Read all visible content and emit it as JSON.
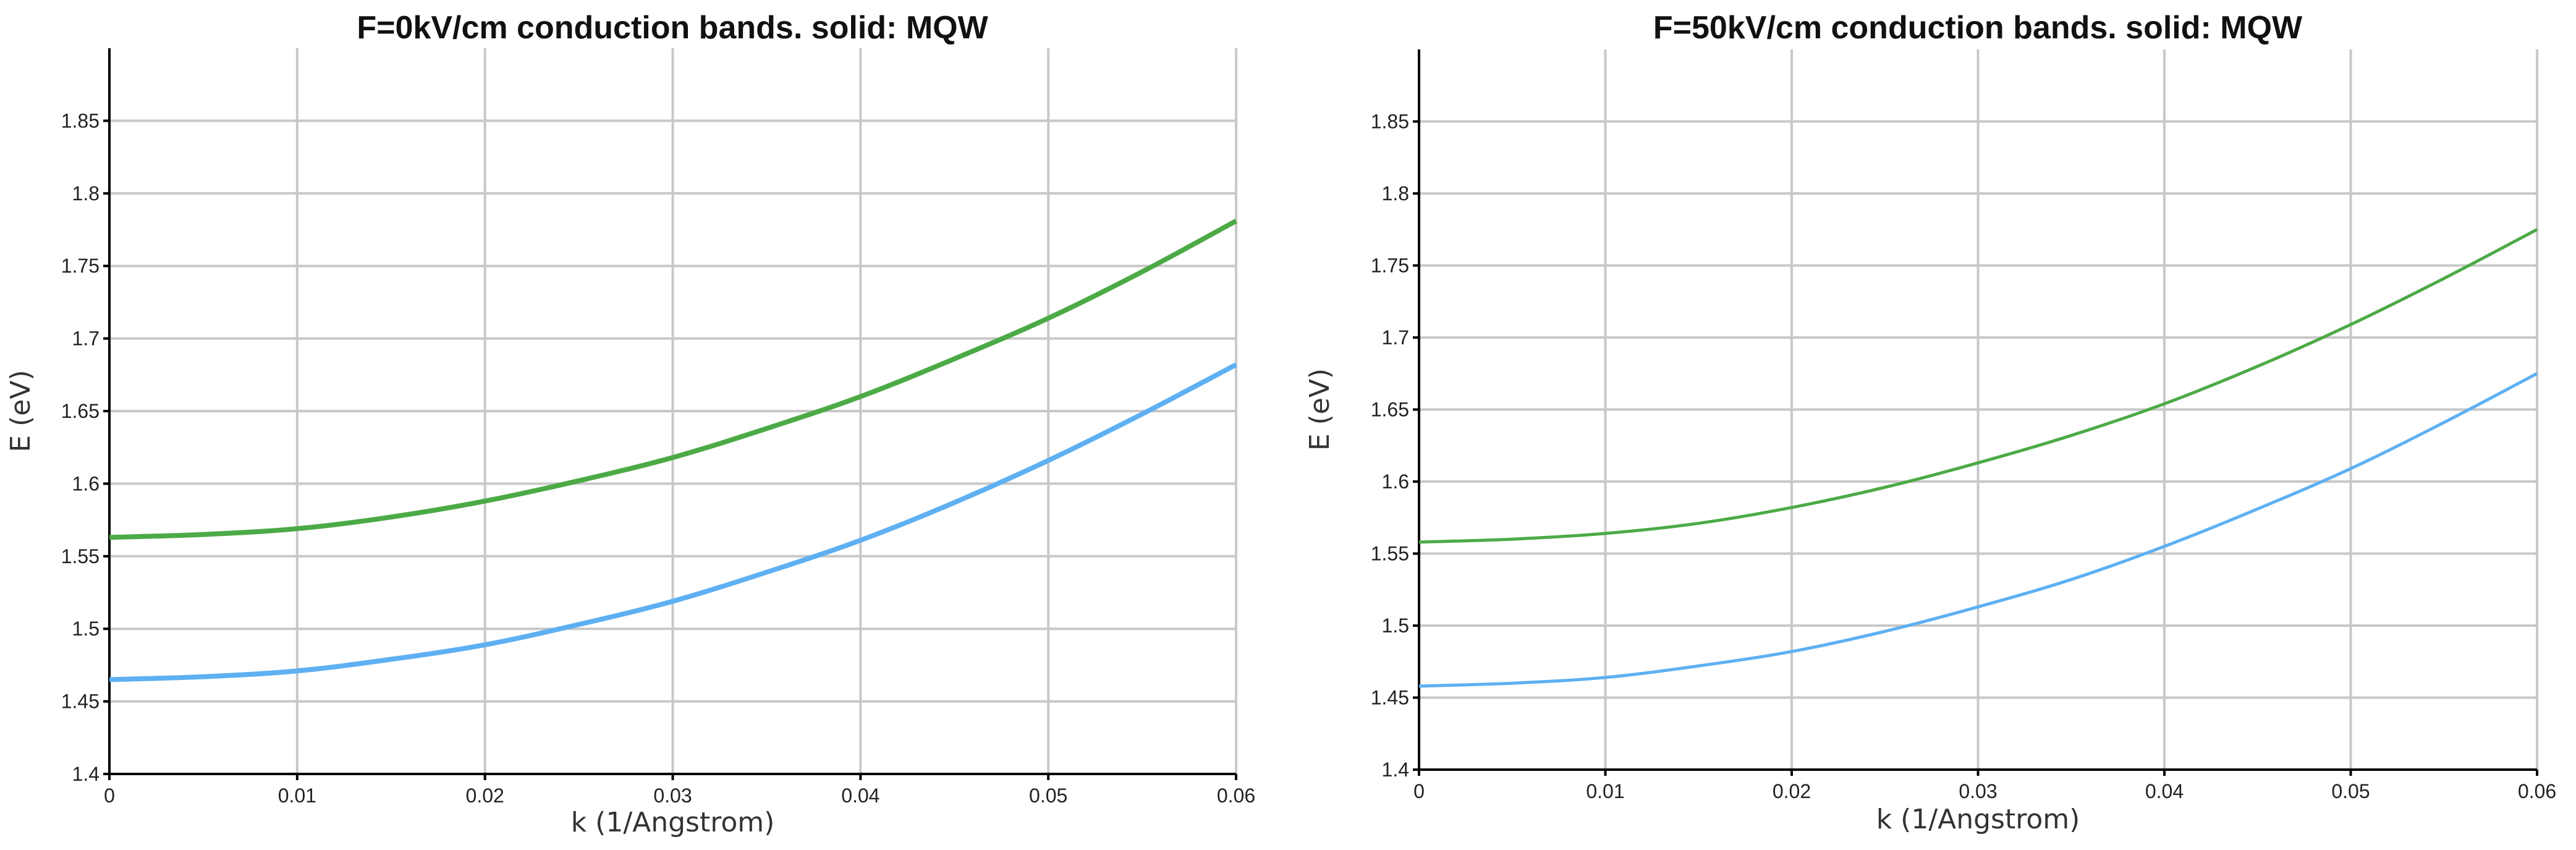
{
  "chart_data": [
    {
      "type": "line",
      "title": "F=0kV/cm  conduction bands. solid: MQW",
      "xlabel": "k (1/Angstrom)",
      "ylabel": "E (eV)",
      "xlim": [
        0,
        0.06
      ],
      "ylim": [
        1.4,
        1.9
      ],
      "xticks": [
        "0",
        "0.01",
        "0.02",
        "0.03",
        "0.04",
        "0.05",
        "0.06"
      ],
      "yticks": [
        "1.4",
        "1.45",
        "1.5",
        "1.55",
        "1.6",
        "1.65",
        "1.7",
        "1.75",
        "1.8",
        "1.85"
      ],
      "grid": true,
      "x": [
        0,
        0.005,
        0.01,
        0.015,
        0.02,
        0.025,
        0.03,
        0.035,
        0.04,
        0.045,
        0.05,
        0.055,
        0.06
      ],
      "series": [
        {
          "color": "#4caa46",
          "values": [
            1.563,
            1.565,
            1.569,
            1.577,
            1.588,
            1.602,
            1.618,
            1.638,
            1.66,
            1.686,
            1.714,
            1.746,
            1.781
          ]
        },
        {
          "color": "#5eb0f2",
          "values": [
            1.465,
            1.467,
            1.471,
            1.479,
            1.489,
            1.503,
            1.519,
            1.539,
            1.561,
            1.587,
            1.616,
            1.648,
            1.682
          ]
        }
      ]
    },
    {
      "type": "line",
      "title": "F=50kV/cm  conduction bands. solid: MQW",
      "xlabel": "k (1/Angstrom)",
      "ylabel": "E (eV)",
      "xlim": [
        0,
        0.06
      ],
      "ylim": [
        1.4,
        1.9
      ],
      "xticks": [
        "0",
        "0.01",
        "0.02",
        "0.03",
        "0.04",
        "0.05",
        "0.06"
      ],
      "yticks": [
        "1.4",
        "1.45",
        "1.5",
        "1.55",
        "1.6",
        "1.65",
        "1.7",
        "1.75",
        "1.8",
        "1.85"
      ],
      "grid": true,
      "x": [
        0,
        0.005,
        0.01,
        0.015,
        0.02,
        0.025,
        0.03,
        0.035,
        0.04,
        0.045,
        0.05,
        0.055,
        0.06
      ],
      "series": [
        {
          "color": "#4caa46",
          "values": [
            1.558,
            1.56,
            1.564,
            1.571,
            1.582,
            1.596,
            1.613,
            1.632,
            1.654,
            1.68,
            1.709,
            1.741,
            1.775
          ]
        },
        {
          "color": "#5eb0f2",
          "values": [
            1.458,
            1.46,
            1.464,
            1.472,
            1.482,
            1.496,
            1.513,
            1.532,
            1.555,
            1.581,
            1.609,
            1.641,
            1.675
          ]
        }
      ]
    }
  ]
}
